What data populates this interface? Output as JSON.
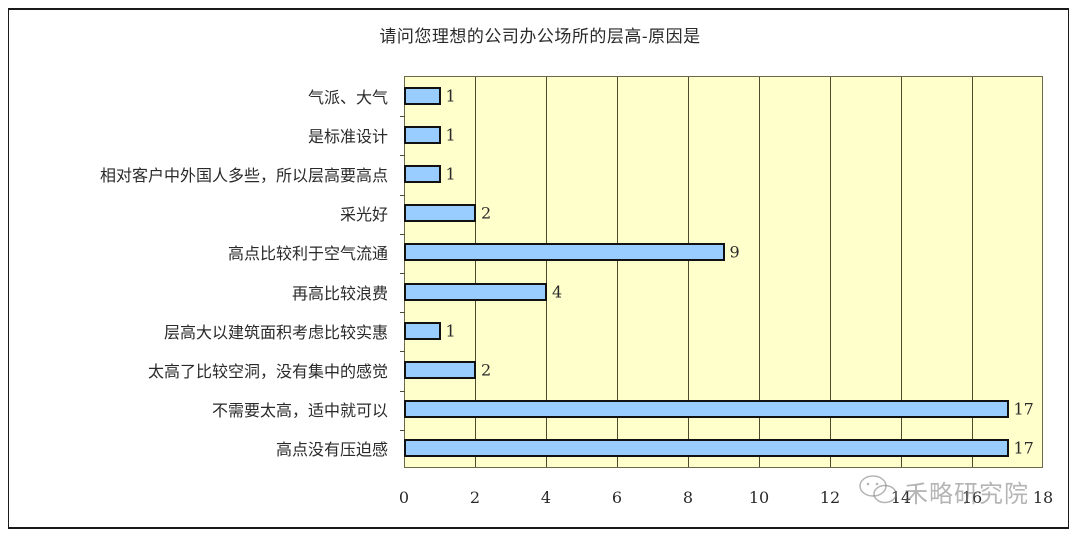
{
  "chart_data": {
    "type": "bar",
    "orientation": "horizontal",
    "title": "请问您理想的公司办公场所的层高-原因是",
    "xlabel": "",
    "ylabel": "",
    "xlim": [
      0,
      18
    ],
    "x_ticks": [
      "0",
      "2",
      "4",
      "6",
      "8",
      "10",
      "12",
      "14",
      "16",
      "18"
    ],
    "grid": true,
    "legend": null,
    "categories": [
      "气派、大气",
      "是标准设计",
      "相对客户中外国人多些，所以层高要高点",
      "采光好",
      "高点比较利于空气流通",
      "再高比较浪费",
      "层高大以建筑面积考虑比较实惠",
      "太高了比较空洞，没有集中的感觉",
      "不需要太高，适中就可以",
      "高点没有压迫感"
    ],
    "values": [
      1,
      1,
      1,
      2,
      9,
      4,
      1,
      2,
      17,
      17
    ],
    "value_labels": [
      "1",
      "1",
      "1",
      "2",
      "9",
      "4",
      "1",
      "2",
      "17",
      "17"
    ],
    "colors": {
      "bar": "#99CCFF",
      "bar_border": "#111111",
      "plot_bg": "#FFFFCC",
      "grid": "#4D4A2E"
    }
  },
  "watermark": {
    "text": "禾略研究院",
    "icon": "wechat-icon"
  }
}
